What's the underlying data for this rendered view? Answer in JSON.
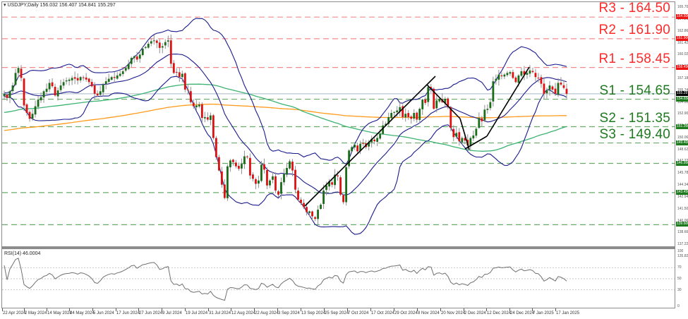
{
  "header": {
    "symbol_line": "USDJPY,Daily  156.032 156.407 154.841 155.297",
    "rsi_label": "RSI(14) 46.0004"
  },
  "colors": {
    "resistance": "#ff2a2a",
    "resistance_line": "#f58a8a",
    "support": "#1e7a1e",
    "support_line": "#6aab6a",
    "bull_candle": "#1a6b1a",
    "bear_candle": "#dd1111",
    "wick": "#909090",
    "bollinger": "#1a1a8c",
    "ma_green": "#3cb371",
    "ma_orange": "#ff9a1a",
    "trendline": "#000000",
    "current_price_tag": "#000000",
    "rsi_line": "#707070"
  },
  "levels": [
    {
      "name": "R3",
      "label": "R3 - 164.50",
      "value": 164.5,
      "tag": "164.500",
      "type": "resistance",
      "show_text": true
    },
    {
      "name": "R2",
      "label": "R2 - 161.90",
      "value": 161.9,
      "tag": "161.900",
      "type": "resistance",
      "show_text": true
    },
    {
      "name": "R1",
      "label": "R1 - 158.45",
      "value": 158.45,
      "tag": "158.450",
      "type": "resistance",
      "show_text": true
    },
    {
      "name": "S1",
      "label": "S1 - 154.65",
      "value": 154.65,
      "tag": "154.650",
      "type": "support",
      "show_text": true
    },
    {
      "name": "S2",
      "label": "S2 - 151.35",
      "value": 151.35,
      "tag": "151.350",
      "type": "support",
      "show_text": true
    },
    {
      "name": "S3",
      "label": "S3 - 149.40",
      "value": 149.4,
      "tag": "149.400",
      "type": "support",
      "show_text": true
    },
    {
      "name": "L7",
      "label": "",
      "value": 146.95,
      "tag": "146.950",
      "type": "support",
      "show_text": false
    },
    {
      "name": "L8",
      "label": "",
      "value": 143.45,
      "tag": "143.450",
      "type": "support",
      "show_text": false
    },
    {
      "name": "L9",
      "label": "",
      "value": 139.6,
      "tag": "139.600",
      "type": "support",
      "show_text": false
    }
  ],
  "current_price": {
    "value": 155.297,
    "tag": "155.297"
  },
  "price_axis": {
    "labels": [
      "165.700",
      "164.260",
      "162.860",
      "161.420",
      "160.020",
      "158.580",
      "157.180",
      "155.740",
      "154.300",
      "152.900",
      "151.460",
      "150.060",
      "148.620",
      "147.220",
      "145.780",
      "144.340",
      "142.940",
      "141.500",
      "140.060",
      "138.660",
      "137.220",
      "135.820"
    ]
  },
  "rsi_axis": {
    "labels": [
      "100",
      "70",
      "50",
      "30",
      "0"
    ]
  },
  "x_axis": {
    "labels": [
      "22 Apr 2024",
      "2 May 2024",
      "14 May 2024",
      "24 May 2024",
      "5 Jun 2024",
      "17 Jun 2024",
      "27 Jun 2024",
      "9 Jul 2024",
      "19 Jul 2024",
      "31 Jul 2024",
      "12 Aug 2024",
      "22 Aug 2024",
      "3 Sep 2024",
      "13 Sep 2024",
      "25 Sep 2024",
      "7 Oct 2024",
      "17 Oct 2024",
      "29 Oct 2024",
      "8 Nov 2024",
      "20 Nov 2024",
      "2 Dec 2024",
      "12 Dec 2024",
      "24 Dec 2024",
      "7 Jan 2025",
      "17 Jan 2025"
    ]
  },
  "chart_data": {
    "type": "candlestick",
    "title": "USDJPY, Daily",
    "ohlc_header": {
      "open": 156.032,
      "high": 156.407,
      "low": 154.841,
      "close": 155.297
    },
    "ylim": [
      135.82,
      165.7
    ],
    "grid": false,
    "indicators": [
      "Bollinger Bands (20)",
      "Moving Average (green, ~100)",
      "Moving Average (orange, ~200)",
      "RSI(14)"
    ],
    "rsi": {
      "period": 14,
      "last": 46.0004,
      "levels": [
        30,
        50,
        70
      ],
      "ylim": [
        0,
        100
      ]
    },
    "support_resistance": {
      "R3": 164.5,
      "R2": 161.9,
      "R1": 158.45,
      "S1": 154.65,
      "S2": 151.35,
      "S3": 149.4,
      "other": [
        146.95,
        143.45,
        139.6
      ]
    },
    "close_series_approx": [
      155.3,
      154.8,
      155.6,
      156.3,
      157.8,
      158.4,
      157.2,
      153.9,
      153.0,
      152.3,
      152.9,
      153.8,
      154.6,
      154.9,
      155.6,
      155.9,
      156.6,
      156.2,
      155.1,
      155.7,
      156.3,
      156.7,
      156.9,
      157.0,
      157.2,
      157.1,
      156.9,
      157.3,
      157.2,
      157.0,
      156.7,
      156.2,
      155.3,
      155.1,
      155.6,
      156.4,
      156.8,
      157.1,
      157.3,
      157.2,
      157.5,
      157.7,
      158.0,
      158.4,
      158.9,
      159.6,
      159.8,
      159.4,
      160.0,
      160.7,
      160.9,
      161.3,
      161.6,
      161.7,
      161.4,
      160.8,
      161.0,
      161.5,
      161.7,
      158.9,
      157.8,
      157.9,
      157.3,
      157.7,
      155.8,
      155.7,
      154.3,
      153.8,
      153.9,
      154.0,
      152.4,
      152.5,
      152.2,
      152.7,
      150.0,
      147.7,
      146.1,
      144.4,
      142.8,
      146.6,
      147.3,
      147.1,
      146.6,
      146.3,
      146.9,
      147.8,
      147.7,
      145.5,
      145.1,
      144.5,
      144.9,
      146.8,
      146.2,
      144.3,
      144.9,
      145.4,
      143.7,
      143.2,
      144.7,
      145.7,
      146.4,
      147.2,
      146.1,
      143.8,
      142.6,
      142.2,
      141.7,
      141.1,
      141.2,
      140.6,
      140.3,
      141.4,
      142.0,
      143.7,
      144.3,
      144.8,
      144.4,
      145.6,
      145.4,
      143.2,
      142.3,
      146.5,
      148.5,
      148.9,
      149.2,
      148.4,
      149.3,
      149.3,
      148.9,
      149.5,
      149.9,
      149.6,
      150.0,
      150.5,
      151.5,
      151.7,
      152.5,
      153.0,
      153.1,
      153.3,
      153.7,
      152.5,
      152.9,
      152.5,
      152.3,
      153.0,
      152.2,
      153.5,
      154.6,
      154.2,
      156.1,
      156.0,
      153.5,
      154.5,
      154.7,
      154.3,
      154.7,
      153.7,
      151.2,
      150.1,
      150.6,
      149.6,
      150.0,
      149.7,
      149.1,
      150.0,
      150.3,
      151.1,
      152.4,
      152.0,
      153.4,
      153.5,
      154.3,
      156.8,
      157.1,
      157.6,
      157.4,
      157.6,
      157.8,
      157.9,
      157.2,
      156.7,
      157.5,
      158.0,
      157.6,
      157.8,
      158.1,
      157.9,
      157.3,
      157.2,
      156.5,
      155.3,
      155.7,
      156.3,
      155.8,
      155.3,
      156.6,
      156.4,
      156.0,
      155.3
    ]
  }
}
